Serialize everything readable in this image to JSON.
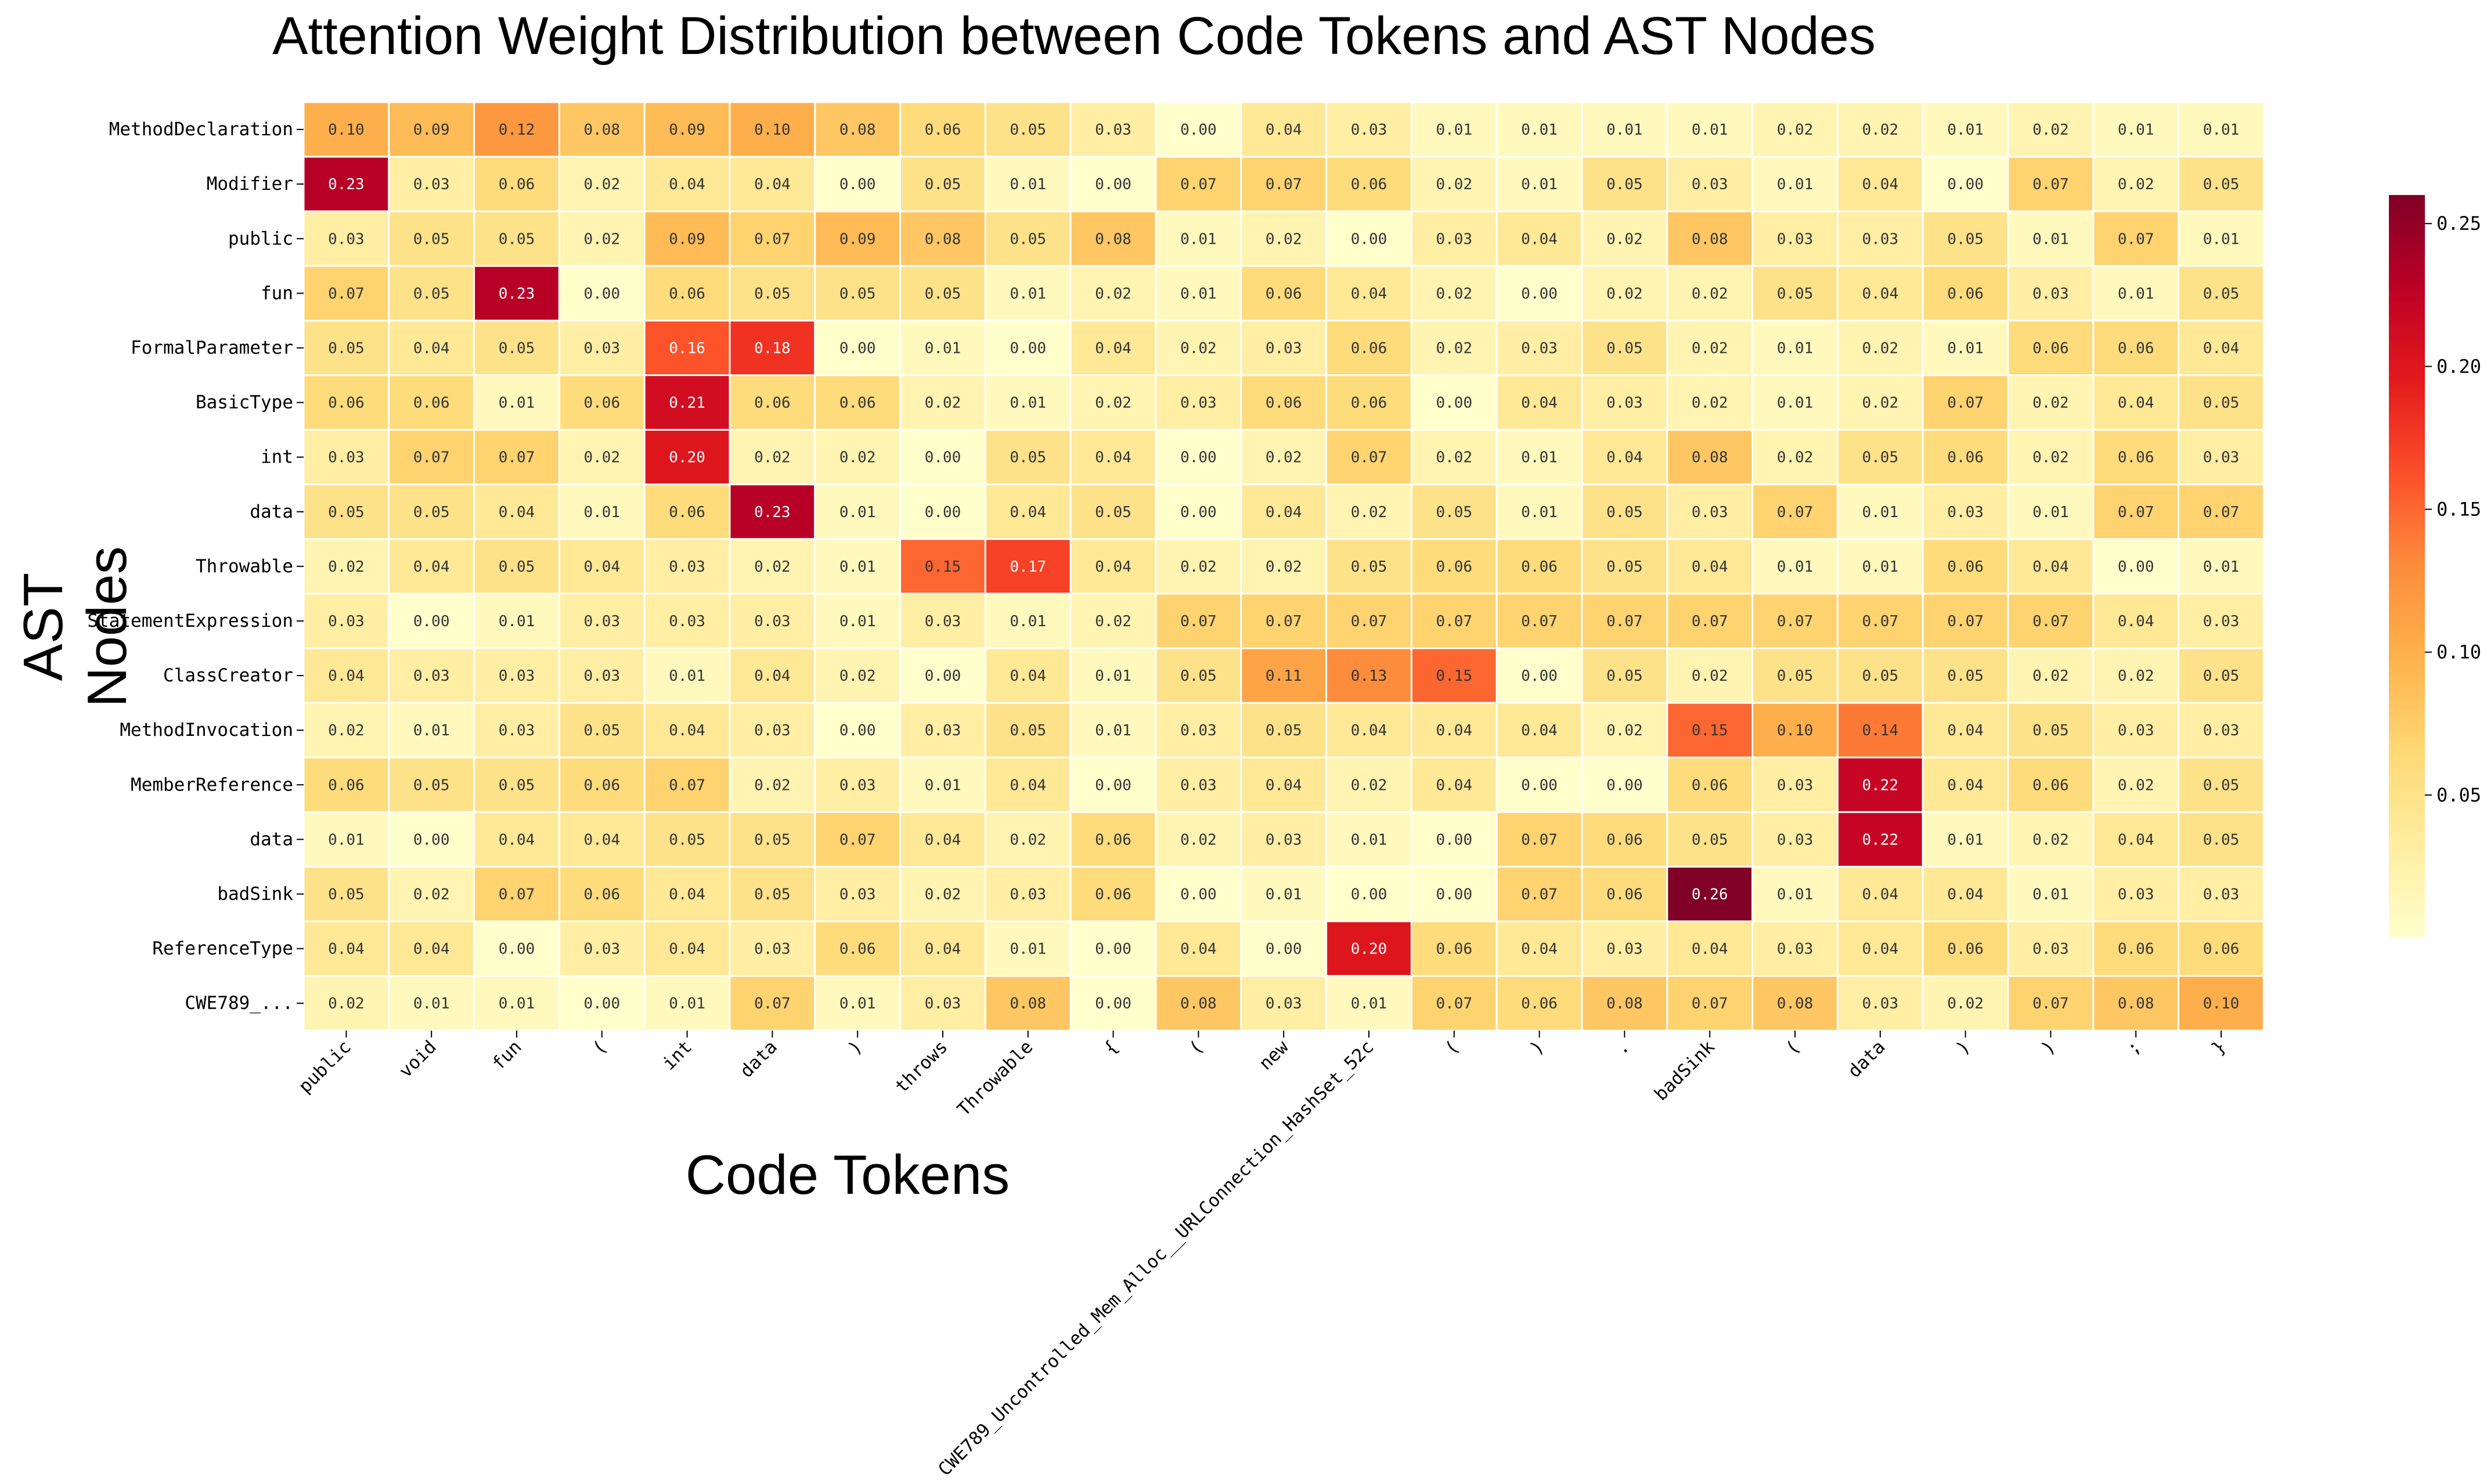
{
  "chart_data": {
    "type": "heatmap",
    "title": "Attention Weight Distribution between Code Tokens and AST Nodes",
    "xlabel": "Code Tokens",
    "ylabel": "AST  Nodes",
    "rows": [
      "MethodDeclaration",
      "Modifier",
      "public",
      "fun",
      "FormalParameter",
      "BasicType",
      "int",
      "data",
      "Throwable",
      "StatementExpression",
      "ClassCreator",
      "MethodInvocation",
      "MemberReference",
      "data",
      "badSink",
      "ReferenceType",
      "CWE789_..."
    ],
    "columns": [
      "public",
      "void",
      "fun",
      "(",
      "int",
      "data",
      ")",
      "throws",
      "Throwable",
      "{",
      "(",
      "new",
      "CWE789_Uncontrolled_Mem_Alloc__URLConnection_HashSet_52c",
      "(",
      ")",
      ".",
      "badSink",
      "(",
      "data",
      ")",
      ")",
      ";",
      "}"
    ],
    "values": [
      [
        0.1,
        0.09,
        0.12,
        0.08,
        0.09,
        0.1,
        0.08,
        0.06,
        0.05,
        0.03,
        0.0,
        0.04,
        0.03,
        0.01,
        0.01,
        0.01,
        0.01,
        0.02,
        0.02,
        0.01,
        0.02,
        0.01,
        0.01
      ],
      [
        0.23,
        0.03,
        0.06,
        0.02,
        0.04,
        0.04,
        0.0,
        0.05,
        0.01,
        0.0,
        0.07,
        0.07,
        0.06,
        0.02,
        0.01,
        0.05,
        0.03,
        0.01,
        0.04,
        0.0,
        0.07,
        0.02,
        0.05
      ],
      [
        0.03,
        0.05,
        0.05,
        0.02,
        0.09,
        0.07,
        0.09,
        0.08,
        0.05,
        0.08,
        0.01,
        0.02,
        0.0,
        0.03,
        0.04,
        0.02,
        0.08,
        0.03,
        0.03,
        0.05,
        0.01,
        0.07,
        0.01
      ],
      [
        0.07,
        0.05,
        0.23,
        0.0,
        0.06,
        0.05,
        0.05,
        0.05,
        0.01,
        0.02,
        0.01,
        0.06,
        0.04,
        0.02,
        0.0,
        0.02,
        0.02,
        0.05,
        0.04,
        0.06,
        0.03,
        0.01,
        0.05
      ],
      [
        0.05,
        0.04,
        0.05,
        0.03,
        0.16,
        0.18,
        0.0,
        0.01,
        0.0,
        0.04,
        0.02,
        0.03,
        0.06,
        0.02,
        0.03,
        0.05,
        0.02,
        0.01,
        0.02,
        0.01,
        0.06,
        0.06,
        0.04
      ],
      [
        0.06,
        0.06,
        0.01,
        0.06,
        0.21,
        0.06,
        0.06,
        0.02,
        0.01,
        0.02,
        0.03,
        0.06,
        0.06,
        0.0,
        0.04,
        0.03,
        0.02,
        0.01,
        0.02,
        0.07,
        0.02,
        0.04,
        0.05
      ],
      [
        0.03,
        0.07,
        0.07,
        0.02,
        0.2,
        0.02,
        0.02,
        0.0,
        0.05,
        0.04,
        0.0,
        0.02,
        0.07,
        0.02,
        0.01,
        0.04,
        0.08,
        0.02,
        0.05,
        0.06,
        0.02,
        0.06,
        0.03
      ],
      [
        0.05,
        0.05,
        0.04,
        0.01,
        0.06,
        0.23,
        0.01,
        0.0,
        0.04,
        0.05,
        0.0,
        0.04,
        0.02,
        0.05,
        0.01,
        0.05,
        0.03,
        0.07,
        0.01,
        0.03,
        0.01,
        0.07,
        0.07
      ],
      [
        0.02,
        0.04,
        0.05,
        0.04,
        0.03,
        0.02,
        0.01,
        0.15,
        0.17,
        0.04,
        0.02,
        0.02,
        0.05,
        0.06,
        0.06,
        0.05,
        0.04,
        0.01,
        0.01,
        0.06,
        0.04,
        0.0,
        0.01
      ],
      [
        0.03,
        0.0,
        0.01,
        0.03,
        0.03,
        0.03,
        0.01,
        0.03,
        0.01,
        0.02,
        0.07,
        0.07,
        0.07,
        0.07,
        0.07,
        0.07,
        0.07,
        0.07,
        0.07,
        0.07,
        0.07,
        0.04,
        0.03
      ],
      [
        0.04,
        0.03,
        0.03,
        0.03,
        0.01,
        0.04,
        0.02,
        0.0,
        0.04,
        0.01,
        0.05,
        0.11,
        0.13,
        0.15,
        0.0,
        0.05,
        0.02,
        0.05,
        0.05,
        0.05,
        0.02,
        0.02,
        0.05
      ],
      [
        0.02,
        0.01,
        0.03,
        0.05,
        0.04,
        0.03,
        0.0,
        0.03,
        0.05,
        0.01,
        0.03,
        0.05,
        0.04,
        0.04,
        0.04,
        0.02,
        0.15,
        0.1,
        0.14,
        0.04,
        0.05,
        0.03,
        0.03
      ],
      [
        0.06,
        0.05,
        0.05,
        0.06,
        0.07,
        0.02,
        0.03,
        0.01,
        0.04,
        0.0,
        0.03,
        0.04,
        0.02,
        0.04,
        0.0,
        0.0,
        0.06,
        0.03,
        0.22,
        0.04,
        0.06,
        0.02,
        0.05
      ],
      [
        0.01,
        0.0,
        0.04,
        0.04,
        0.05,
        0.05,
        0.07,
        0.04,
        0.02,
        0.06,
        0.02,
        0.03,
        0.01,
        0.0,
        0.07,
        0.06,
        0.05,
        0.03,
        0.22,
        0.01,
        0.02,
        0.04,
        0.05
      ],
      [
        0.05,
        0.02,
        0.07,
        0.06,
        0.04,
        0.05,
        0.03,
        0.02,
        0.03,
        0.06,
        0.0,
        0.01,
        0.0,
        0.0,
        0.07,
        0.06,
        0.26,
        0.01,
        0.04,
        0.04,
        0.01,
        0.03,
        0.03
      ],
      [
        0.04,
        0.04,
        0.0,
        0.03,
        0.04,
        0.03,
        0.06,
        0.04,
        0.01,
        0.0,
        0.04,
        0.0,
        0.2,
        0.06,
        0.04,
        0.03,
        0.04,
        0.03,
        0.04,
        0.06,
        0.03,
        0.06,
        0.06
      ],
      [
        0.02,
        0.01,
        0.01,
        0.0,
        0.01,
        0.07,
        0.01,
        0.03,
        0.08,
        0.0,
        0.08,
        0.03,
        0.01,
        0.07,
        0.06,
        0.08,
        0.07,
        0.08,
        0.03,
        0.02,
        0.07,
        0.08,
        0.1
      ]
    ],
    "colorbar": {
      "colormap": "YlOrRd",
      "range": [
        0.0,
        0.26
      ],
      "ticks": [
        0.05,
        0.1,
        0.15,
        0.2,
        0.25
      ],
      "tick_labels": [
        "0.05",
        "0.10",
        "0.15",
        "0.20",
        "0.25"
      ]
    }
  }
}
